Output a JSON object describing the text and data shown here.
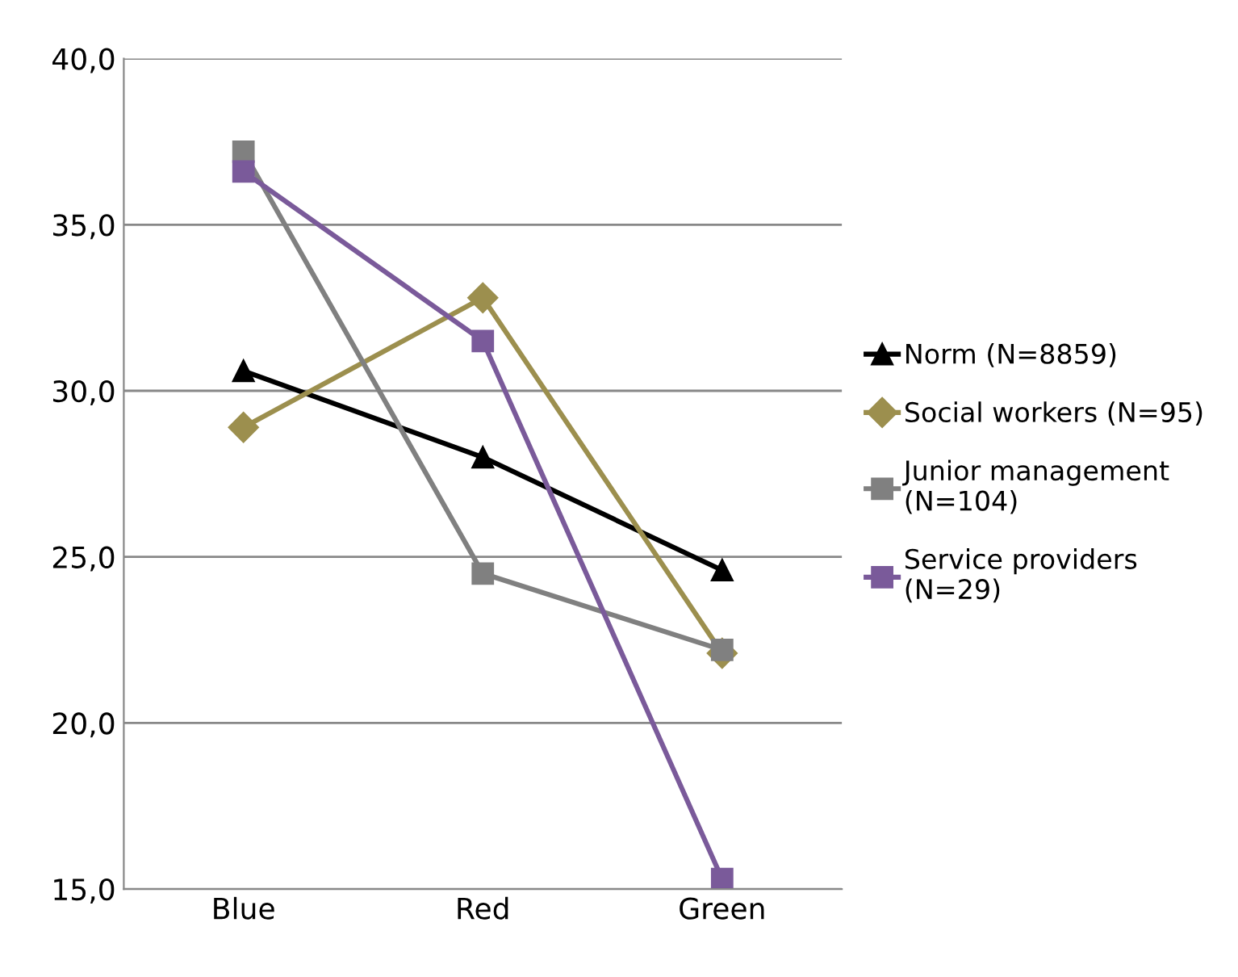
{
  "chart_data": {
    "type": "line",
    "categories": [
      "Blue",
      "Red",
      "Green"
    ],
    "series": [
      {
        "name": "Norm (N=8859)",
        "color": "#000000",
        "marker": "triangle",
        "values": [
          30.6,
          28.0,
          24.6
        ]
      },
      {
        "name": "Social workers (N=95)",
        "color": "#9c8f4e",
        "marker": "diamond",
        "values": [
          28.9,
          32.8,
          22.1
        ]
      },
      {
        "name": "Junior management\n(N=104)",
        "color": "#808080",
        "marker": "square",
        "values": [
          37.2,
          24.5,
          22.2
        ]
      },
      {
        "name": "Service providers\n(N=29)",
        "color": "#7a5a9a",
        "marker": "square",
        "values": [
          36.6,
          31.5,
          15.3
        ]
      }
    ],
    "ylim": [
      15,
      40
    ],
    "yticks": [
      {
        "value": 15,
        "label": "15,0"
      },
      {
        "value": 20,
        "label": "20,0"
      },
      {
        "value": 25,
        "label": "25,0"
      },
      {
        "value": 30,
        "label": "30,0"
      },
      {
        "value": 35,
        "label": "35,0"
      },
      {
        "value": 40,
        "label": "40,0"
      }
    ],
    "grid": "y",
    "legend": "right",
    "line_style": "solid"
  }
}
